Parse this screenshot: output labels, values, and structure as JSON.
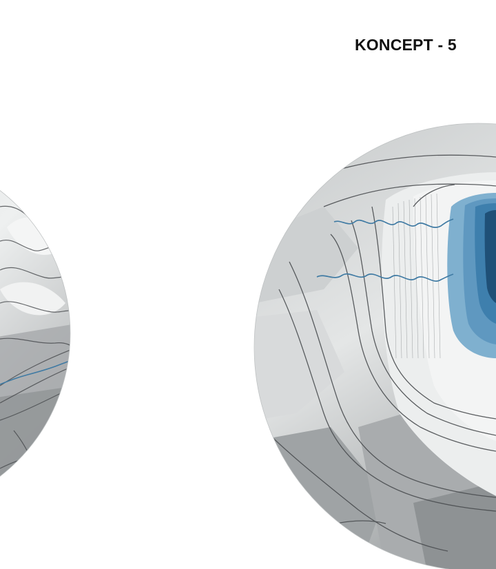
{
  "header": {
    "title": "KONCEPT - 5"
  },
  "map": {
    "palette": {
      "terrain_light": "#e9eaea",
      "terrain_mid": "#b9bcbd",
      "terrain_dark": "#8f9395",
      "contour": "#4a4d50",
      "river": "#3f7aa3",
      "water_shallow": "#7fb0cf",
      "water_mid": "#3e7fad",
      "water_deep": "#1f5077"
    }
  }
}
